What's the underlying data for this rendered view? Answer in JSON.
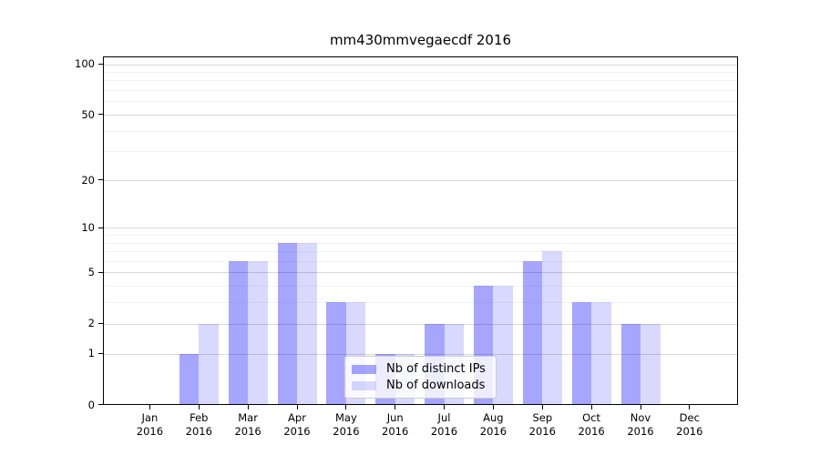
{
  "chart_data": {
    "type": "bar",
    "title": "mm430mmvegaecdf 2016",
    "categories": [
      "Jan",
      "Feb",
      "Mar",
      "Apr",
      "May",
      "Jun",
      "Jul",
      "Aug",
      "Sep",
      "Oct",
      "Nov",
      "Dec"
    ],
    "year_label": "2016",
    "series": [
      {
        "name": "Nb of distinct IPs",
        "color_hex": "#0000ff",
        "alpha": 0.35,
        "values": [
          0,
          1,
          6,
          8,
          3,
          1,
          2,
          4,
          6,
          3,
          2,
          0
        ]
      },
      {
        "name": "Nb of downloads",
        "color_hex": "#0000ff",
        "alpha": 0.15,
        "values": [
          0,
          2,
          6,
          8,
          3,
          1,
          2,
          4,
          7,
          3,
          2,
          0
        ]
      }
    ],
    "y_scale": "log10(value+1)",
    "y_major_ticks": [
      0,
      1,
      2,
      5,
      10,
      20,
      50,
      100
    ],
    "y_minor_ticks": [
      3,
      4,
      6,
      7,
      8,
      9,
      30,
      40,
      60,
      70,
      80,
      90
    ],
    "ylim": [
      0,
      110
    ],
    "grid": true,
    "legend_position": "lower center",
    "colors": {
      "major_grid": "#d8d8d8",
      "minor_grid": "#f2f2f2",
      "spine": "#000000",
      "text": "#000000",
      "legend_border": "#cccccc",
      "legend_bg": "#ffffff"
    }
  }
}
